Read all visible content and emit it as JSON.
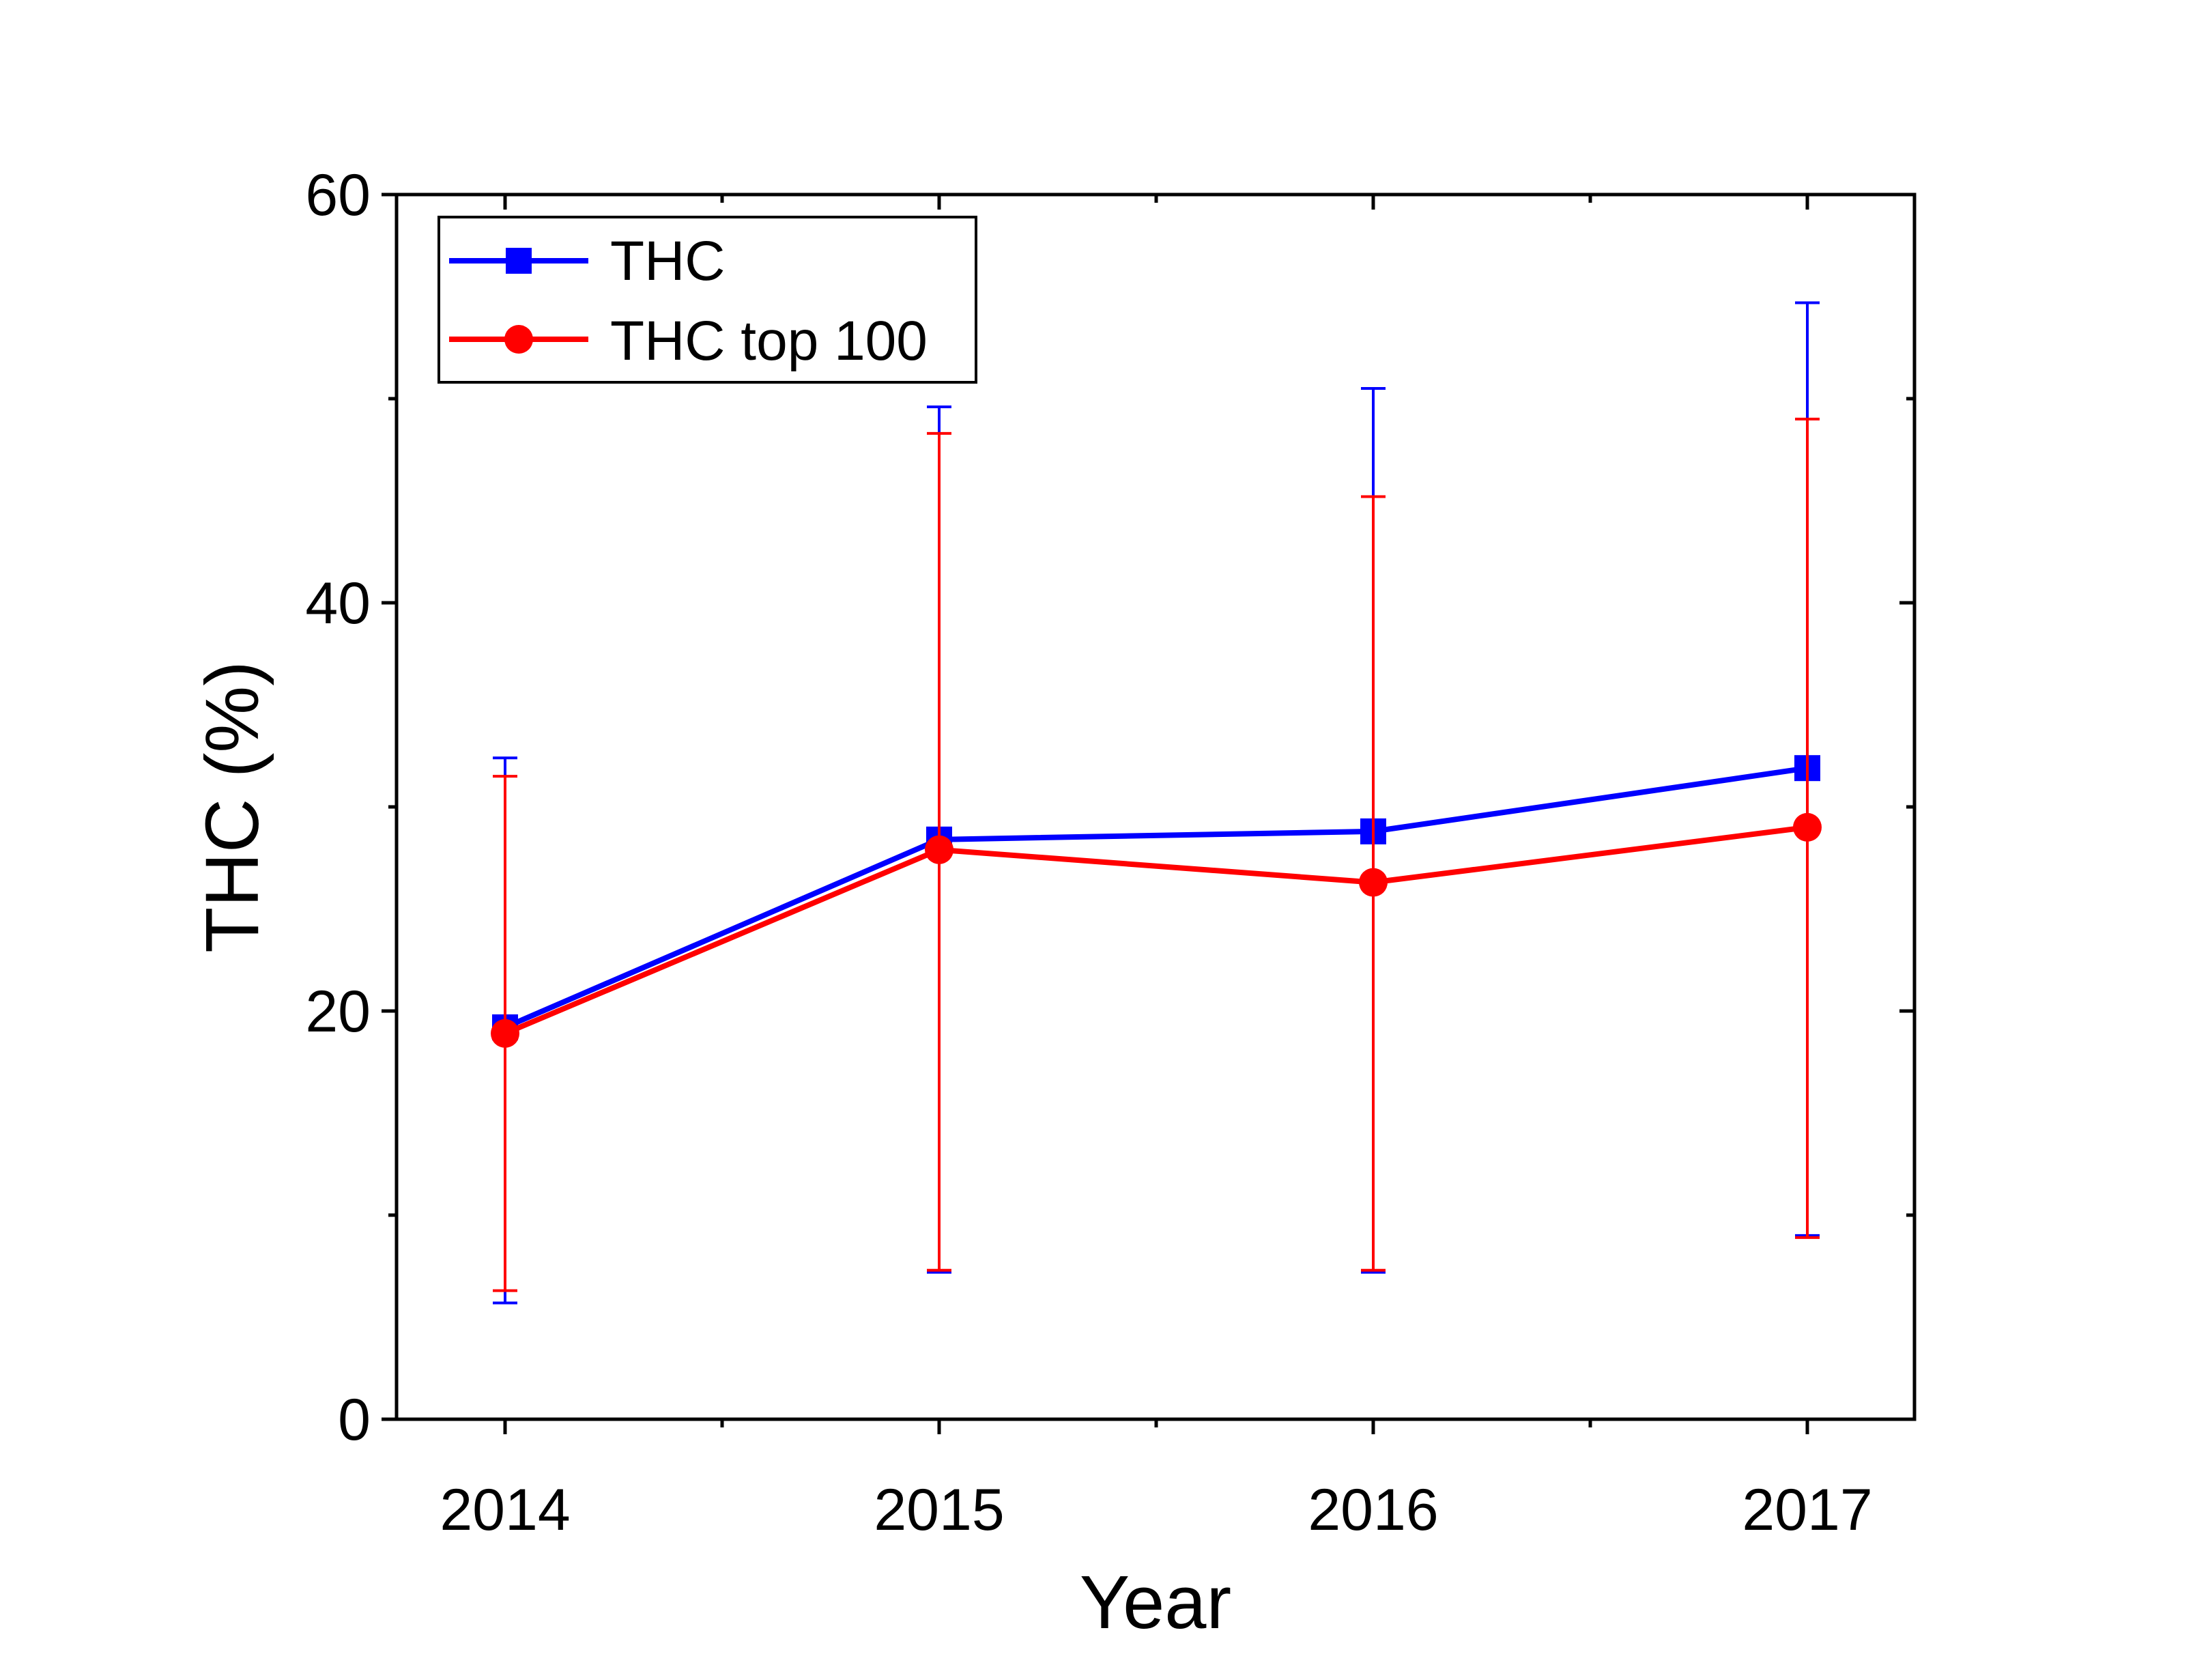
{
  "chart_data": {
    "type": "line",
    "xlabel": "Year",
    "ylabel": "THC (%)",
    "categories": [
      "2014",
      "2015",
      "2016",
      "2017"
    ],
    "ylim": [
      0,
      60
    ],
    "yticks": [
      "0",
      "20",
      "40",
      "60"
    ],
    "grid": false,
    "legend_position": "top-left",
    "series": [
      {
        "name": "THC",
        "color": "#0000ff",
        "marker": "square",
        "values": [
          19.2,
          28.4,
          28.8,
          31.9
        ],
        "err_low": [
          5.7,
          7.2,
          7.2,
          9.0
        ],
        "err_high": [
          32.4,
          49.6,
          50.5,
          54.7
        ]
      },
      {
        "name": "THC top 100",
        "color": "#ff0000",
        "marker": "circle",
        "values": [
          18.9,
          27.9,
          26.3,
          29.0
        ],
        "err_low": [
          6.3,
          7.3,
          7.3,
          8.9
        ],
        "err_high": [
          31.5,
          48.3,
          45.2,
          49.0
        ]
      }
    ]
  }
}
